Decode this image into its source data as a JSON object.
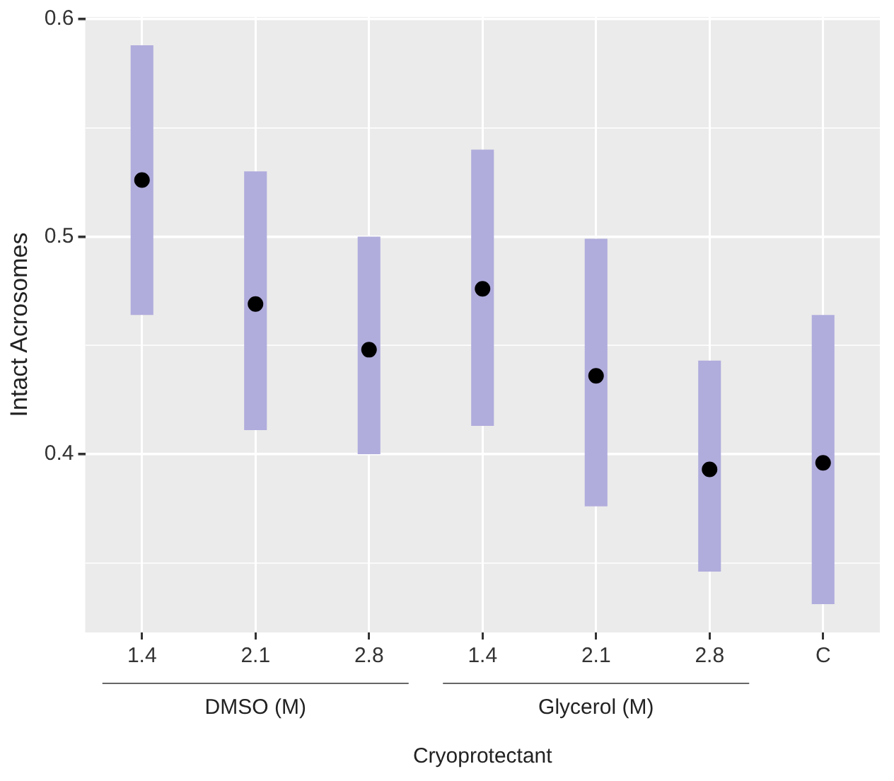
{
  "chart_data": {
    "type": "bar",
    "xlabel": "Cryoprotectant",
    "ylabel": "Intact Acrosomes",
    "categories": [
      "1.4",
      "2.1",
      "2.8",
      "1.4",
      "2.1",
      "2.8",
      "C"
    ],
    "series": [
      {
        "color": "#b0acdc",
        "base": [
          0.464,
          0.411,
          0.4,
          0.413,
          0.376,
          0.346,
          0.331
        ],
        "values": [
          0.124,
          0.119,
          0.1,
          0.127,
          0.123,
          0.097,
          0.133
        ]
      },
      {
        "type": "scatter",
        "color": "#000000",
        "marker": "circle",
        "values": [
          0.526,
          0.469,
          0.448,
          0.476,
          0.436,
          0.393,
          0.396
        ]
      }
    ],
    "ylim": [
      0.318,
      0.601
    ],
    "yticks": [
      {
        "value": 0.35,
        "label": null
      },
      0.4,
      {
        "value": 0.45,
        "label": null
      },
      0.5,
      {
        "value": 0.55,
        "label": null
      },
      0.6
    ],
    "grid": true,
    "legend": false,
    "annotations": [
      "DMSO (M)",
      "Glycerol (M)"
    ]
  }
}
